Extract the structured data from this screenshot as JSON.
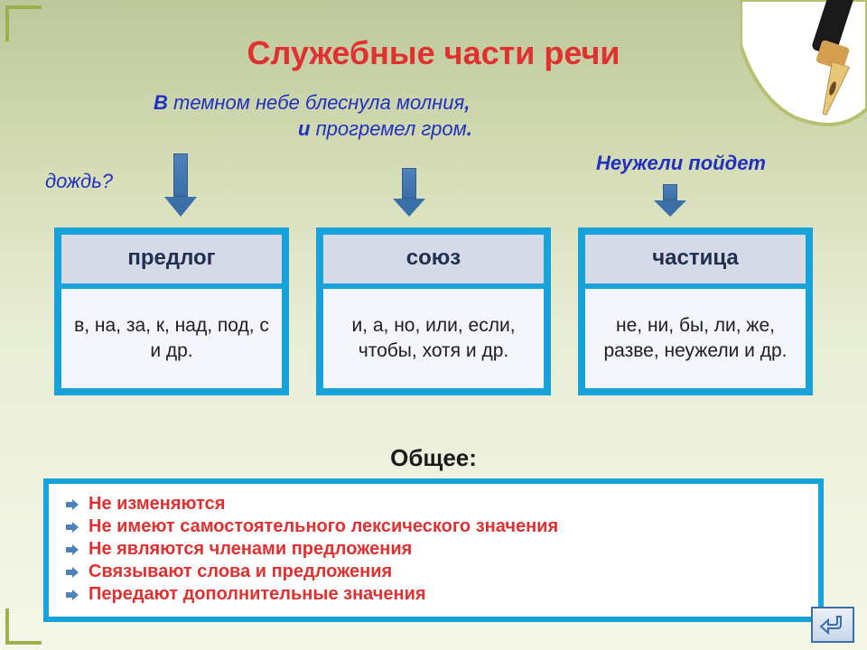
{
  "colors": {
    "title": "#e03030",
    "box_border": "#17a2d9",
    "box_head_bg": "#d6dae6",
    "box_body_bg": "#f4f6fb",
    "example_text": "#2030c0",
    "arrow_fill": "#3a6fa8",
    "arrow_border": "#385d8a",
    "bullet_text": "#e03030",
    "corner": "#9eb04d"
  },
  "title": "Служебные части речи",
  "example": {
    "line1_pre": "В",
    "line1_mid": "темном небе блеснула молния",
    "line1_punct": ",",
    "line2_pre": "и",
    "line2_rest": "прогремел гром",
    "line2_punct": "."
  },
  "rain_question": "дождь?",
  "neuzheli_line": "Неужели пойдет",
  "boxes": [
    {
      "head": "предлог",
      "body": "в, на, за, к, над, под, с\nи др."
    },
    {
      "head": "союз",
      "body": "и, а, но, или, если, чтобы, хотя и др."
    },
    {
      "head": "частица",
      "body": "не, ни, бы, ли, же, разве, неужели и др."
    }
  ],
  "general_label": "Общее:",
  "bullets": [
    "Не изменяются",
    "Не имеют самостоятельного лексического значения",
    "Не являются членами предложения",
    "Связывают слова и предложения",
    "Передают дополнительные значения"
  ],
  "fontsize": {
    "title": 36,
    "example": 22,
    "box_head": 24,
    "box_body": 21,
    "general": 26,
    "bullet": 20
  }
}
